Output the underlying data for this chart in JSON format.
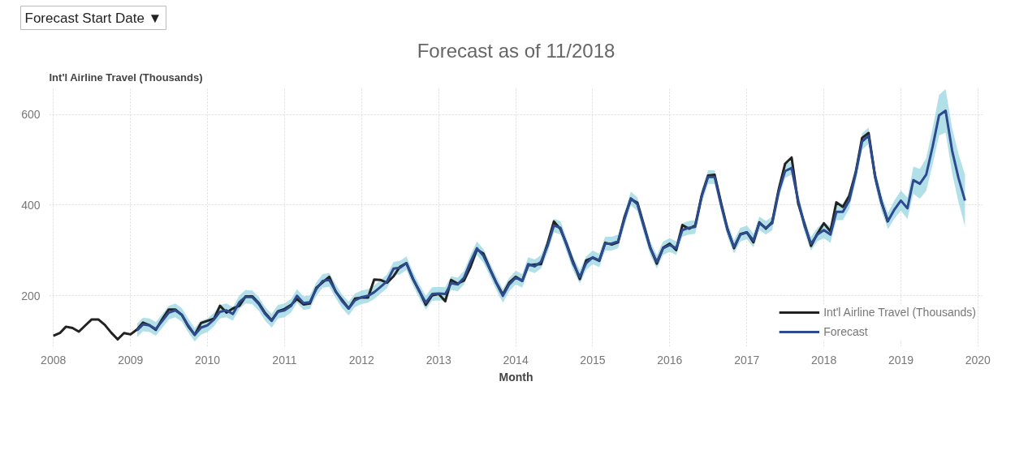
{
  "chart_data": {
    "type": "line",
    "title": "Forecast as of 11/2018",
    "ylabel": "Int'l Airline Travel (Thousands)",
    "xlabel": "Month",
    "annotations": [
      "Forecast Start Date ▼"
    ],
    "x": [
      "2008-01",
      "2008-02",
      "2008-03",
      "2008-04",
      "2008-05",
      "2008-06",
      "2008-07",
      "2008-08",
      "2008-09",
      "2008-10",
      "2008-11",
      "2008-12",
      "2009-01",
      "2009-02",
      "2009-03",
      "2009-04",
      "2009-05",
      "2009-06",
      "2009-07",
      "2009-08",
      "2009-09",
      "2009-10",
      "2009-11",
      "2009-12",
      "2010-01",
      "2010-02",
      "2010-03",
      "2010-04",
      "2010-05",
      "2010-06",
      "2010-07",
      "2010-08",
      "2010-09",
      "2010-10",
      "2010-11",
      "2010-12",
      "2011-01",
      "2011-02",
      "2011-03",
      "2011-04",
      "2011-05",
      "2011-06",
      "2011-07",
      "2011-08",
      "2011-09",
      "2011-10",
      "2011-11",
      "2011-12",
      "2012-01",
      "2012-02",
      "2012-03",
      "2012-04",
      "2012-05",
      "2012-06",
      "2012-07",
      "2012-08",
      "2012-09",
      "2012-10",
      "2012-11",
      "2012-12",
      "2013-01",
      "2013-02",
      "2013-03",
      "2013-04",
      "2013-05",
      "2013-06",
      "2013-07",
      "2013-08",
      "2013-09",
      "2013-10",
      "2013-11",
      "2013-12",
      "2014-01",
      "2014-02",
      "2014-03",
      "2014-04",
      "2014-05",
      "2014-06",
      "2014-07",
      "2014-08",
      "2014-09",
      "2014-10",
      "2014-11",
      "2014-12",
      "2015-01",
      "2015-02",
      "2015-03",
      "2015-04",
      "2015-05",
      "2015-06",
      "2015-07",
      "2015-08",
      "2015-09",
      "2015-10",
      "2015-11",
      "2015-12",
      "2016-01",
      "2016-02",
      "2016-03",
      "2016-04",
      "2016-05",
      "2016-06",
      "2016-07",
      "2016-08",
      "2016-09",
      "2016-10",
      "2016-11",
      "2016-12",
      "2017-01",
      "2017-02",
      "2017-03",
      "2017-04",
      "2017-05",
      "2017-06",
      "2017-07",
      "2017-08",
      "2017-09",
      "2017-10",
      "2017-11",
      "2017-12",
      "2018-01",
      "2018-02",
      "2018-03",
      "2018-04",
      "2018-05",
      "2018-06",
      "2018-07",
      "2018-08",
      "2018-09",
      "2018-10",
      "2018-11",
      "2018-12",
      "2019-01",
      "2019-02",
      "2019-03",
      "2019-04",
      "2019-05",
      "2019-06",
      "2019-07",
      "2019-08",
      "2019-09",
      "2019-10",
      "2019-11"
    ],
    "series": [
      {
        "name": "Int'l Airline Travel (Thousands)",
        "color": "#222222",
        "values": [
          112,
          118,
          132,
          129,
          121,
          135,
          148,
          148,
          136,
          119,
          104,
          118,
          115,
          126,
          141,
          135,
          125,
          149,
          170,
          170,
          158,
          133,
          114,
          140,
          145,
          150,
          178,
          163,
          172,
          178,
          199,
          199,
          184,
          162,
          146,
          166,
          171,
          180,
          193,
          181,
          183,
          218,
          230,
          242,
          209,
          191,
          172,
          194,
          196,
          196,
          236,
          235,
          229,
          243,
          264,
          272,
          237,
          211,
          180,
          201,
          204,
          188,
          235,
          227,
          234,
          264,
          302,
          293,
          259,
          229,
          203,
          229,
          242,
          233,
          267,
          269,
          270,
          315,
          364,
          347,
          312,
          274,
          237,
          278,
          284,
          277,
          317,
          313,
          318,
          374,
          413,
          405,
          355,
          306,
          271,
          306,
          315,
          301,
          356,
          348,
          355,
          422,
          465,
          467,
          404,
          347,
          305,
          336,
          340,
          318,
          362,
          348,
          363,
          435,
          491,
          505,
          404,
          359,
          310,
          337,
          360,
          342,
          406,
          396,
          420,
          472,
          548,
          559,
          463,
          407,
          362,
          null,
          null,
          null,
          null,
          null,
          null,
          null,
          null,
          null,
          null,
          null,
          null
        ]
      },
      {
        "name": "Forecast",
        "color": "#2e4a8f",
        "values": [
          null,
          null,
          null,
          null,
          null,
          null,
          null,
          null,
          null,
          null,
          null,
          null,
          null,
          124,
          137,
          135,
          127,
          145,
          163,
          168,
          158,
          135,
          114,
          130,
          135,
          148,
          165,
          168,
          160,
          186,
          198,
          197,
          182,
          160,
          145,
          165,
          168,
          178,
          200,
          184,
          186,
          215,
          233,
          235,
          210,
          188,
          172,
          190,
          197,
          200,
          208,
          220,
          232,
          260,
          262,
          272,
          238,
          210,
          185,
          204,
          205,
          204,
          228,
          225,
          240,
          275,
          305,
          288,
          258,
          228,
          200,
          225,
          240,
          233,
          270,
          265,
          275,
          310,
          355,
          350,
          310,
          270,
          242,
          272,
          285,
          278,
          315,
          315,
          320,
          370,
          415,
          402,
          352,
          305,
          275,
          305,
          312,
          305,
          345,
          350,
          352,
          420,
          462,
          462,
          400,
          345,
          308,
          335,
          340,
          322,
          360,
          350,
          360,
          430,
          475,
          482,
          410,
          355,
          315,
          335,
          345,
          335,
          385,
          385,
          410,
          470,
          540,
          553,
          462,
          405,
          365,
          390,
          410,
          393,
          455,
          447,
          467,
          530,
          598,
          608,
          520,
          460,
          410
        ],
        "lower": [
          null,
          null,
          null,
          null,
          null,
          null,
          null,
          null,
          null,
          null,
          null,
          null,
          null,
          109,
          122,
          120,
          112,
          130,
          148,
          153,
          143,
          120,
          99,
          115,
          120,
          133,
          150,
          153,
          145,
          171,
          183,
          182,
          167,
          145,
          130,
          150,
          153,
          163,
          185,
          169,
          171,
          200,
          218,
          220,
          195,
          173,
          157,
          175,
          182,
          185,
          193,
          205,
          217,
          245,
          247,
          257,
          223,
          195,
          170,
          189,
          190,
          189,
          213,
          210,
          225,
          260,
          290,
          273,
          243,
          213,
          185,
          210,
          225,
          218,
          255,
          250,
          260,
          295,
          340,
          335,
          295,
          255,
          227,
          257,
          270,
          263,
          300,
          300,
          305,
          355,
          400,
          387,
          337,
          290,
          260,
          290,
          297,
          290,
          330,
          335,
          337,
          405,
          447,
          447,
          385,
          330,
          293,
          320,
          325,
          307,
          345,
          335,
          345,
          415,
          460,
          467,
          395,
          340,
          300,
          320,
          327,
          317,
          367,
          367,
          392,
          452,
          522,
          535,
          444,
          387,
          347,
          370,
          388,
          369,
          425,
          414,
          431,
          490,
          553,
          560,
          470,
          407,
          353
        ],
        "upper": [
          null,
          null,
          null,
          null,
          null,
          null,
          null,
          null,
          null,
          null,
          null,
          null,
          null,
          139,
          152,
          150,
          142,
          160,
          178,
          183,
          173,
          150,
          129,
          145,
          150,
          163,
          180,
          183,
          175,
          201,
          213,
          212,
          197,
          175,
          160,
          180,
          183,
          193,
          215,
          199,
          201,
          230,
          248,
          250,
          225,
          203,
          187,
          205,
          212,
          215,
          223,
          235,
          247,
          275,
          277,
          287,
          253,
          225,
          200,
          219,
          220,
          219,
          243,
          240,
          255,
          290,
          320,
          303,
          273,
          243,
          215,
          240,
          255,
          248,
          285,
          280,
          290,
          325,
          370,
          365,
          325,
          285,
          257,
          287,
          300,
          293,
          330,
          330,
          335,
          385,
          430,
          417,
          367,
          320,
          290,
          320,
          327,
          320,
          360,
          365,
          367,
          435,
          477,
          477,
          415,
          360,
          323,
          350,
          355,
          337,
          375,
          365,
          375,
          445,
          490,
          497,
          425,
          370,
          330,
          350,
          363,
          353,
          403,
          403,
          428,
          488,
          558,
          571,
          480,
          423,
          383,
          410,
          432,
          417,
          485,
          480,
          503,
          570,
          643,
          656,
          570,
          513,
          467
        ]
      }
    ],
    "xlim": [
      "2007-12-12",
      "2020-01-25"
    ],
    "xticks": [
      "2008",
      "2009",
      "2010",
      "2011",
      "2012",
      "2013",
      "2014",
      "2015",
      "2016",
      "2017",
      "2018",
      "2019",
      "2020"
    ],
    "ylim": [
      88,
      660
    ],
    "yticks": [
      200,
      400,
      600
    ],
    "grid": true,
    "legend": "bottom right",
    "line_style": "solid",
    "marker": "none"
  }
}
